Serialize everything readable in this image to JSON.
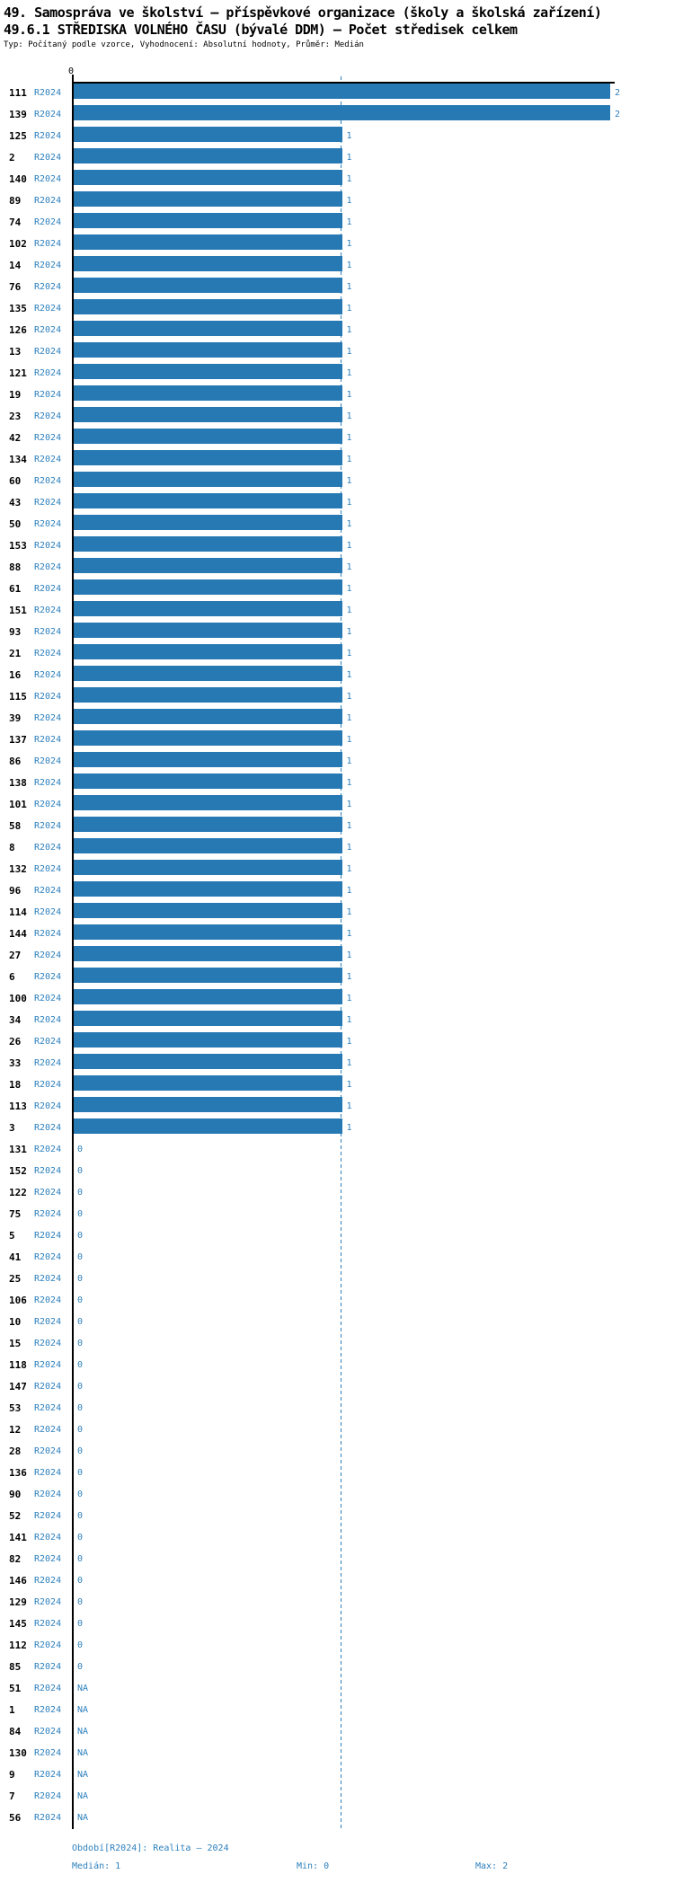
{
  "header": {
    "title_line1": "49. Samospráva ve školství – příspěvkové organizace (školy a školská zařízení)",
    "title_line2": "49.6.1 STŘEDISKA VOLNÉHO ČASU (bývalé DDM) – Počet středisek celkem",
    "subtitle": "Typ: Počítaný podle vzorce, Vyhodnocení: Absolutní hodnoty, Průměr: Medián"
  },
  "chart_data": {
    "type": "bar",
    "orientation": "horizontal",
    "title": "49.6.1 STŘEDISKA VOLNÉHO ČASU (bývalé DDM) – Počet středisek celkem",
    "period_label": "R2024",
    "axis": {
      "min": 0,
      "max": 2,
      "zero_label": "0",
      "median_value": 1,
      "grid": "median-dashed-line"
    },
    "colors": {
      "bar": "#2779b4",
      "text_blue": "#2e80bd",
      "row_label": "#000000"
    },
    "legend_position": "none",
    "rows": [
      {
        "label": "111",
        "value": 2
      },
      {
        "label": "139",
        "value": 2
      },
      {
        "label": "125",
        "value": 1
      },
      {
        "label": "2",
        "value": 1
      },
      {
        "label": "140",
        "value": 1
      },
      {
        "label": "89",
        "value": 1
      },
      {
        "label": "74",
        "value": 1
      },
      {
        "label": "102",
        "value": 1
      },
      {
        "label": "14",
        "value": 1
      },
      {
        "label": "76",
        "value": 1
      },
      {
        "label": "135",
        "value": 1
      },
      {
        "label": "126",
        "value": 1
      },
      {
        "label": "13",
        "value": 1
      },
      {
        "label": "121",
        "value": 1
      },
      {
        "label": "19",
        "value": 1
      },
      {
        "label": "23",
        "value": 1
      },
      {
        "label": "42",
        "value": 1
      },
      {
        "label": "134",
        "value": 1
      },
      {
        "label": "60",
        "value": 1
      },
      {
        "label": "43",
        "value": 1
      },
      {
        "label": "50",
        "value": 1
      },
      {
        "label": "153",
        "value": 1
      },
      {
        "label": "88",
        "value": 1
      },
      {
        "label": "61",
        "value": 1
      },
      {
        "label": "151",
        "value": 1
      },
      {
        "label": "93",
        "value": 1
      },
      {
        "label": "21",
        "value": 1
      },
      {
        "label": "16",
        "value": 1
      },
      {
        "label": "115",
        "value": 1
      },
      {
        "label": "39",
        "value": 1
      },
      {
        "label": "137",
        "value": 1
      },
      {
        "label": "86",
        "value": 1
      },
      {
        "label": "138",
        "value": 1
      },
      {
        "label": "101",
        "value": 1
      },
      {
        "label": "58",
        "value": 1
      },
      {
        "label": "8",
        "value": 1
      },
      {
        "label": "132",
        "value": 1
      },
      {
        "label": "96",
        "value": 1
      },
      {
        "label": "114",
        "value": 1
      },
      {
        "label": "144",
        "value": 1
      },
      {
        "label": "27",
        "value": 1
      },
      {
        "label": "6",
        "value": 1
      },
      {
        "label": "100",
        "value": 1
      },
      {
        "label": "34",
        "value": 1
      },
      {
        "label": "26",
        "value": 1
      },
      {
        "label": "33",
        "value": 1
      },
      {
        "label": "18",
        "value": 1
      },
      {
        "label": "113",
        "value": 1
      },
      {
        "label": "3",
        "value": 1
      },
      {
        "label": "131",
        "value": 0
      },
      {
        "label": "152",
        "value": 0
      },
      {
        "label": "122",
        "value": 0
      },
      {
        "label": "75",
        "value": 0
      },
      {
        "label": "5",
        "value": 0
      },
      {
        "label": "41",
        "value": 0
      },
      {
        "label": "25",
        "value": 0
      },
      {
        "label": "106",
        "value": 0
      },
      {
        "label": "10",
        "value": 0
      },
      {
        "label": "15",
        "value": 0
      },
      {
        "label": "118",
        "value": 0
      },
      {
        "label": "147",
        "value": 0
      },
      {
        "label": "53",
        "value": 0
      },
      {
        "label": "12",
        "value": 0
      },
      {
        "label": "28",
        "value": 0
      },
      {
        "label": "136",
        "value": 0
      },
      {
        "label": "90",
        "value": 0
      },
      {
        "label": "52",
        "value": 0
      },
      {
        "label": "141",
        "value": 0
      },
      {
        "label": "82",
        "value": 0
      },
      {
        "label": "146",
        "value": 0
      },
      {
        "label": "129",
        "value": 0
      },
      {
        "label": "145",
        "value": 0
      },
      {
        "label": "112",
        "value": 0
      },
      {
        "label": "85",
        "value": 0
      },
      {
        "label": "51",
        "value": "NA"
      },
      {
        "label": "1",
        "value": "NA"
      },
      {
        "label": "84",
        "value": "NA"
      },
      {
        "label": "130",
        "value": "NA"
      },
      {
        "label": "9",
        "value": "NA"
      },
      {
        "label": "7",
        "value": "NA"
      },
      {
        "label": "56",
        "value": "NA"
      }
    ]
  },
  "footer": {
    "period": "Období[R2024]: Realita – 2024",
    "median": "Medián: 1",
    "min": "Min: 0",
    "max": "Max: 2"
  }
}
